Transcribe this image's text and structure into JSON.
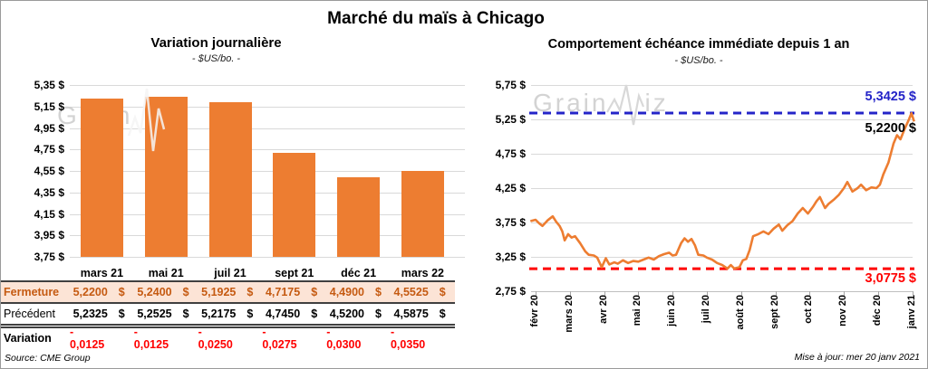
{
  "page": {
    "title": "Marché du maïs à Chicago",
    "source_note": "Source: CME Group",
    "update_note": "Mise à jour: mer 20 janv 2021",
    "watermark": {
      "prefix": "Grain",
      "suffix": "iz"
    }
  },
  "table": {
    "columns": [
      "mars 21",
      "mai 21",
      "juil 21",
      "sept 21",
      "déc 21",
      "mars 22"
    ],
    "rows": [
      {
        "label": "Fermeture",
        "style": "close",
        "suffix": "$",
        "values": [
          "5,2200",
          "5,2400",
          "5,1925",
          "4,7175",
          "4,4900",
          "4,5525"
        ]
      },
      {
        "label": "Précédent",
        "style": "prev",
        "suffix": "$",
        "values": [
          "5,2325",
          "5,2525",
          "5,2175",
          "4,7450",
          "4,5200",
          "4,5875"
        ]
      },
      {
        "label": "Variation",
        "style": "var",
        "suffix": "",
        "values": [
          "- 0,0125",
          "- 0,0125",
          "- 0,0250",
          "- 0,0275",
          "- 0,0300",
          "- 0,0350"
        ]
      }
    ],
    "colors": {
      "close_bg": "#FCE4D6",
      "close_text": "#C55A11",
      "negative": "#FF0000",
      "border": "#404040"
    }
  },
  "chart_data": [
    {
      "type": "bar",
      "title": "Variation journalière",
      "subtitle": "- $US/bo. -",
      "categories": [
        "mars 21",
        "mai 21",
        "juil 21",
        "sept 21",
        "déc 21",
        "mars 22"
      ],
      "values": [
        5.22,
        5.24,
        5.1925,
        4.7175,
        4.49,
        4.5525
      ],
      "ylim": [
        3.75,
        5.35
      ],
      "ytick_labels": [
        "5,35 $",
        "5,15 $",
        "4,95 $",
        "4,75 $",
        "4,55 $",
        "4,35 $",
        "4,15 $",
        "3,95 $",
        "3,75 $"
      ],
      "bar_color": "#ED7D31",
      "grid": true
    },
    {
      "type": "line",
      "title": "Comportement échéance immédiate depuis 1 an",
      "subtitle": "- $US/bo. -",
      "x_labels": [
        "févr 20",
        "mars 20",
        "avr 20",
        "mai 20",
        "juin 20",
        "juil 20",
        "août 20",
        "sept 20",
        "oct 20",
        "nov 20",
        "déc 20",
        "janv 21"
      ],
      "ylim": [
        2.75,
        5.75
      ],
      "ytick_labels": [
        "5,75 $",
        "5,25 $",
        "4,75 $",
        "4,25 $",
        "3,75 $",
        "3,25 $",
        "2,75 $"
      ],
      "line_color": "#ED7D31",
      "grid": true,
      "legend": "none",
      "max_line": {
        "value": 5.3425,
        "label": "5,3425 $",
        "color": "#2424C8"
      },
      "min_line": {
        "value": 3.0775,
        "label": "3,0775 $",
        "color": "#FF0000"
      },
      "last_value": {
        "value": 5.22,
        "label": "5,2200 $",
        "color": "#000000"
      },
      "x_unit": "month index, 0 = févr 20",
      "points": [
        [
          -0.15,
          3.77
        ],
        [
          0,
          3.79
        ],
        [
          0.1,
          3.74
        ],
        [
          0.2,
          3.7
        ],
        [
          0.35,
          3.78
        ],
        [
          0.5,
          3.84
        ],
        [
          0.6,
          3.76
        ],
        [
          0.7,
          3.7
        ],
        [
          0.78,
          3.62
        ],
        [
          0.85,
          3.49
        ],
        [
          0.95,
          3.58
        ],
        [
          1.05,
          3.53
        ],
        [
          1.15,
          3.55
        ],
        [
          1.3,
          3.45
        ],
        [
          1.45,
          3.33
        ],
        [
          1.55,
          3.28
        ],
        [
          1.7,
          3.27
        ],
        [
          1.8,
          3.24
        ],
        [
          1.93,
          3.1
        ],
        [
          2.05,
          3.23
        ],
        [
          2.15,
          3.14
        ],
        [
          2.3,
          3.17
        ],
        [
          2.4,
          3.15
        ],
        [
          2.55,
          3.2
        ],
        [
          2.7,
          3.16
        ],
        [
          2.85,
          3.19
        ],
        [
          3,
          3.18
        ],
        [
          3.15,
          3.21
        ],
        [
          3.3,
          3.24
        ],
        [
          3.45,
          3.21
        ],
        [
          3.6,
          3.26
        ],
        [
          3.75,
          3.29
        ],
        [
          3.9,
          3.31
        ],
        [
          4,
          3.27
        ],
        [
          4.1,
          3.28
        ],
        [
          4.25,
          3.45
        ],
        [
          4.35,
          3.52
        ],
        [
          4.45,
          3.47
        ],
        [
          4.55,
          3.51
        ],
        [
          4.65,
          3.42
        ],
        [
          4.75,
          3.28
        ],
        [
          4.9,
          3.27
        ],
        [
          5,
          3.24
        ],
        [
          5.15,
          3.21
        ],
        [
          5.3,
          3.16
        ],
        [
          5.45,
          3.13
        ],
        [
          5.6,
          3.08
        ],
        [
          5.7,
          3.13
        ],
        [
          5.8,
          3.08
        ],
        [
          5.95,
          3.1
        ],
        [
          6.05,
          3.2
        ],
        [
          6.15,
          3.22
        ],
        [
          6.25,
          3.35
        ],
        [
          6.35,
          3.55
        ],
        [
          6.5,
          3.58
        ],
        [
          6.65,
          3.62
        ],
        [
          6.8,
          3.58
        ],
        [
          6.95,
          3.66
        ],
        [
          7.1,
          3.72
        ],
        [
          7.2,
          3.63
        ],
        [
          7.35,
          3.71
        ],
        [
          7.5,
          3.77
        ],
        [
          7.65,
          3.88
        ],
        [
          7.8,
          3.96
        ],
        [
          7.95,
          3.88
        ],
        [
          8.1,
          3.98
        ],
        [
          8.2,
          4.06
        ],
        [
          8.3,
          4.12
        ],
        [
          8.45,
          3.96
        ],
        [
          8.55,
          4.02
        ],
        [
          8.7,
          4.08
        ],
        [
          8.85,
          4.15
        ],
        [
          9,
          4.25
        ],
        [
          9.1,
          4.34
        ],
        [
          9.25,
          4.2
        ],
        [
          9.4,
          4.25
        ],
        [
          9.5,
          4.3
        ],
        [
          9.65,
          4.22
        ],
        [
          9.8,
          4.26
        ],
        [
          9.95,
          4.25
        ],
        [
          10.05,
          4.3
        ],
        [
          10.15,
          4.45
        ],
        [
          10.3,
          4.62
        ],
        [
          10.45,
          4.9
        ],
        [
          10.55,
          5.02
        ],
        [
          10.65,
          4.96
        ],
        [
          10.78,
          5.12
        ],
        [
          10.9,
          5.25
        ],
        [
          10.97,
          5.34
        ],
        [
          11.05,
          5.22
        ]
      ]
    }
  ]
}
